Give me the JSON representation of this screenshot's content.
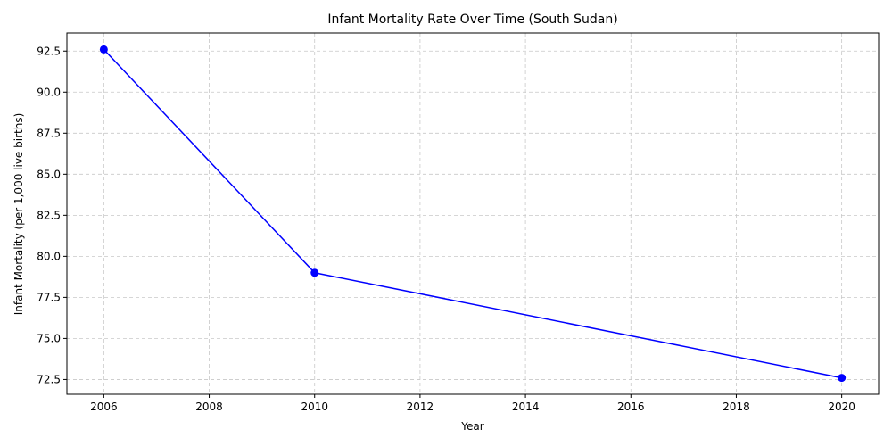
{
  "chart_data": {
    "type": "line",
    "title": "Infant Mortality Rate Over Time (South Sudan)",
    "xlabel": "Year",
    "ylabel": "Infant Mortality (per 1,000 live births)",
    "xlim": [
      2005.3,
      2020.7
    ],
    "ylim": [
      71.6,
      93.6
    ],
    "xticks": [
      2006,
      2008,
      2010,
      2012,
      2014,
      2016,
      2018,
      2020
    ],
    "yticks": [
      72.5,
      75.0,
      77.5,
      80.0,
      82.5,
      85.0,
      87.5,
      90.0,
      92.5
    ],
    "grid": true,
    "series": [
      {
        "color": "#0000ff",
        "marker": "circle",
        "points": [
          {
            "x": 2006,
            "y": 92.6
          },
          {
            "x": 2010,
            "y": 79.0
          },
          {
            "x": 2020,
            "y": 72.6
          }
        ]
      }
    ]
  }
}
